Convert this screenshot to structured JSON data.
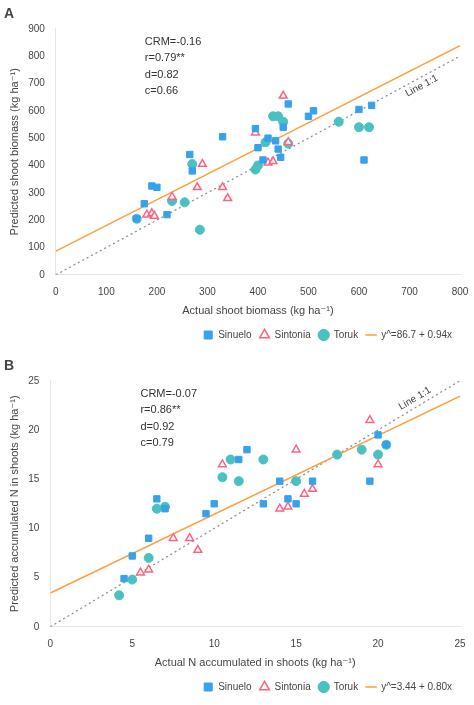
{
  "chart_data": [
    {
      "type": "scatter",
      "title": "A",
      "x_label": "Actual shoot biomass (kg ha⁻¹)",
      "y_label": "Predicted shoot biomass (kg ha⁻¹)",
      "xlim": [
        0,
        800
      ],
      "ylim": [
        0,
        900
      ],
      "xticks": [
        0,
        100,
        200,
        300,
        400,
        500,
        600,
        700,
        800
      ],
      "yticks": [
        0,
        100,
        200,
        300,
        400,
        500,
        600,
        700,
        800,
        900
      ],
      "grid": false,
      "legend": "lower right",
      "annotations": [
        {
          "text": "CRM=-0.16\nr=0.79**\nd=0.82\nc=0.66"
        },
        {
          "text": "Line 1:1",
          "x": [
            0,
            800
          ],
          "y": [
            0,
            800
          ],
          "line_style": "dotted"
        }
      ],
      "series": [
        {
          "name": "Sinuelo",
          "marker": "square",
          "x": [
            160,
            175,
            190,
            200,
            220,
            265,
            270,
            330,
            395,
            400,
            410,
            420,
            435,
            440,
            445,
            450,
            460,
            500,
            510,
            600,
            610,
            625
          ],
          "values": [
            205,
            260,
            325,
            320,
            220,
            440,
            380,
            505,
            535,
            465,
            420,
            500,
            490,
            460,
            430,
            540,
            625,
            580,
            600,
            605,
            420,
            620
          ]
        },
        {
          "name": "Sintonia",
          "marker": "triangle-open",
          "x": [
            180,
            190,
            195,
            230,
            280,
            290,
            330,
            340,
            395,
            420,
            430,
            450,
            460
          ],
          "values": [
            220,
            225,
            215,
            285,
            320,
            405,
            320,
            280,
            520,
            410,
            415,
            655,
            485
          ]
        },
        {
          "name": "Toruk",
          "marker": "circle",
          "x": [
            160,
            230,
            255,
            270,
            285,
            395,
            400,
            415,
            430,
            440,
            450,
            460,
            560,
            600,
            620
          ],
          "values": [
            205,
            270,
            265,
            405,
            165,
            385,
            400,
            485,
            580,
            580,
            560,
            480,
            560,
            540,
            540
          ]
        },
        {
          "name": "y^=86.7 + 0.94x",
          "type": "line",
          "line_style": "solid",
          "x": [
            0,
            800
          ],
          "values": [
            86.7,
            838.7
          ]
        }
      ]
    },
    {
      "type": "scatter",
      "title": "B",
      "x_label": "Actual N accumulated in shoots (kg ha⁻¹)",
      "y_label": "Predicted accumulated N in shoots (kg ha⁻¹)",
      "xlim": [
        0,
        25
      ],
      "ylim": [
        0,
        25
      ],
      "xticks": [
        0,
        5,
        10,
        15,
        20,
        25
      ],
      "yticks": [
        0,
        5,
        10,
        15,
        20,
        25
      ],
      "grid": false,
      "legend": "lower right",
      "annotations": [
        {
          "text": "CRM=-0.07\nr=0.86**\nd=0.92\nc=0.79"
        },
        {
          "text": "Line 1:1",
          "x": [
            0,
            25
          ],
          "y": [
            0,
            25
          ],
          "line_style": "dotted"
        }
      ],
      "series": [
        {
          "name": "Sinuelo",
          "marker": "square",
          "x": [
            4.5,
            5.0,
            6.0,
            6.5,
            7.0,
            9.5,
            10.0,
            11.5,
            12.0,
            13.0,
            14.0,
            14.5,
            15.0,
            16.0,
            19.5,
            20.0,
            20.5
          ],
          "values": [
            4.9,
            7.2,
            9.0,
            13.0,
            12.0,
            11.5,
            12.5,
            17.0,
            18.0,
            12.5,
            14.8,
            13.0,
            12.5,
            14.8,
            14.8,
            19.5,
            18.5
          ]
        },
        {
          "name": "Sintonia",
          "marker": "triangle-open",
          "x": [
            5.5,
            6.0,
            7.5,
            8.5,
            9.0,
            10.5,
            14.0,
            14.5,
            15.0,
            15.5,
            16.0,
            19.5,
            20.0
          ],
          "values": [
            5.5,
            5.8,
            9.0,
            9.0,
            7.8,
            16.5,
            12.0,
            12.2,
            18.0,
            13.5,
            14.0,
            21.0,
            16.5
          ]
        },
        {
          "name": "Toruk",
          "marker": "circle",
          "x": [
            4.2,
            5.0,
            6.0,
            6.5,
            7.0,
            10.5,
            11.0,
            11.5,
            13.0,
            15.0,
            17.5,
            19.0,
            20.0,
            20.5
          ],
          "values": [
            3.2,
            4.8,
            7.0,
            12.0,
            12.2,
            15.2,
            17.0,
            14.8,
            17.0,
            14.8,
            17.5,
            18.0,
            17.5,
            18.5
          ]
        },
        {
          "name": "y^=3.44 + 0.80x",
          "type": "line",
          "line_style": "solid",
          "x": [
            0,
            25
          ],
          "values": [
            3.44,
            23.44
          ]
        }
      ]
    }
  ]
}
